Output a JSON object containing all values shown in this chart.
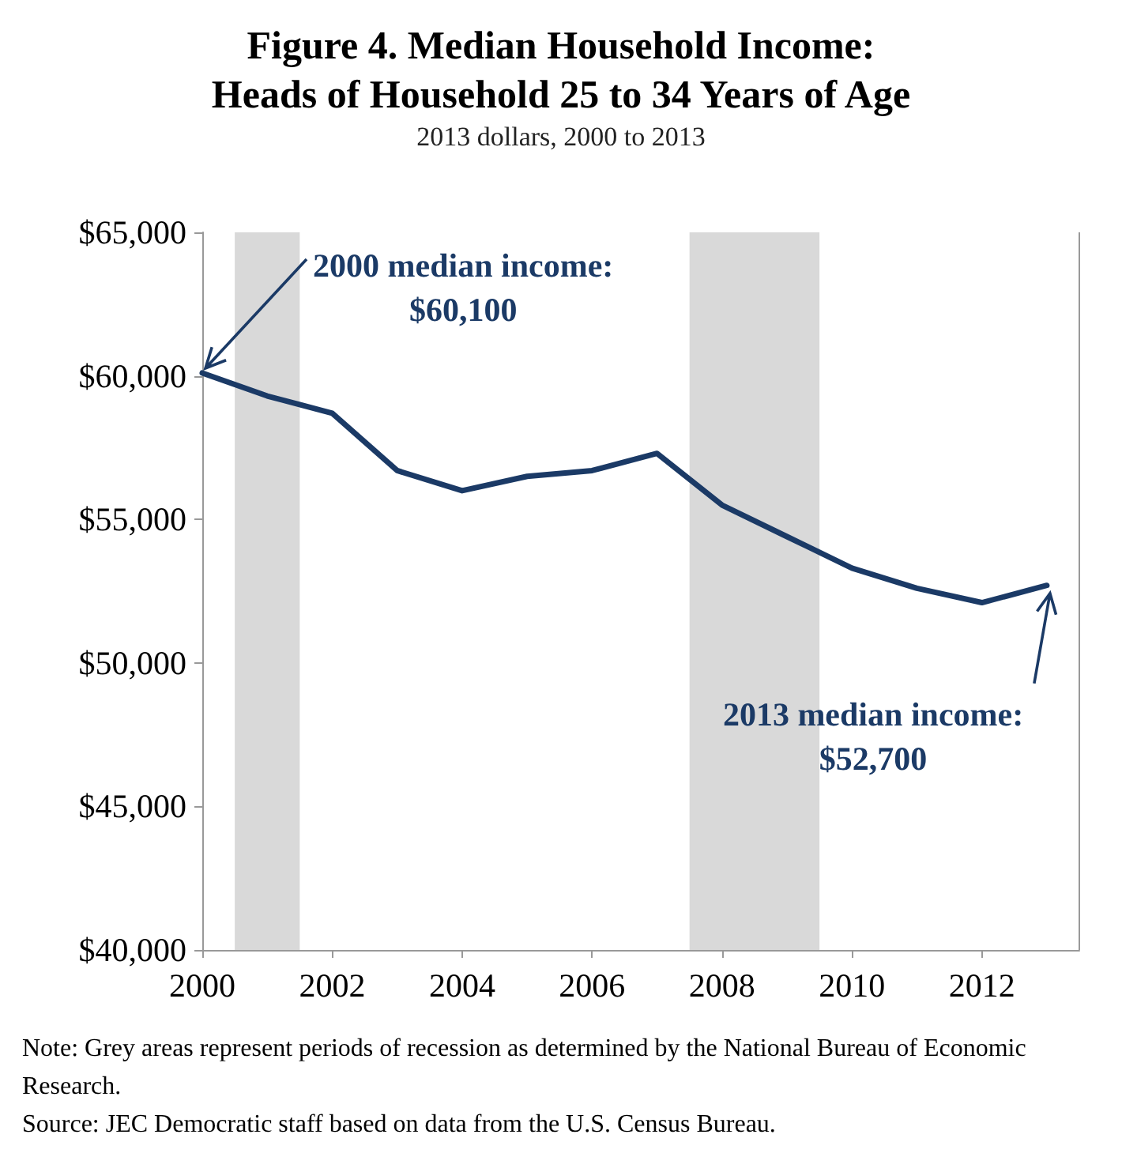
{
  "chart_data": {
    "type": "line",
    "title": "Figure 4. Median Household Income:\nHeads of Household 25 to 34 Years of Age",
    "subtitle": "2013 dollars, 2000 to 2013",
    "x": [
      2000,
      2001,
      2002,
      2003,
      2004,
      2005,
      2006,
      2007,
      2008,
      2009,
      2010,
      2011,
      2012,
      2013
    ],
    "series": [
      {
        "color": "#1b3a66",
        "values": [
          60100,
          59300,
          58700,
          56700,
          56000,
          56500,
          56700,
          57300,
          55500,
          54400,
          53300,
          52600,
          52100,
          52700
        ]
      }
    ],
    "xlim": [
      2000,
      2013.5
    ],
    "xticks": [
      2000,
      2002,
      2004,
      2006,
      2008,
      2010,
      2012
    ],
    "ylim": [
      40000,
      65000
    ],
    "yticks": [
      {
        "value": 40000,
        "label": "$40,000"
      },
      {
        "value": 45000,
        "label": "$45,000"
      },
      {
        "value": 50000,
        "label": "$50,000"
      },
      {
        "value": 55000,
        "label": "$55,000"
      },
      {
        "value": 60000,
        "label": "$60,000"
      },
      {
        "value": 65000,
        "label": "$65,000"
      }
    ],
    "bands": [
      {
        "axis": "x",
        "from": 2000.5,
        "to": 2001.5,
        "color": "#d9d9d9"
      },
      {
        "axis": "x",
        "from": 2007.5,
        "to": 2009.5,
        "color": "#d9d9d9"
      }
    ],
    "annotations": [
      {
        "text": "2000 median income:\n$60,100",
        "x": 2000,
        "y": 60100
      },
      {
        "text": "2013 median income:\n$52,700",
        "x": 2013,
        "y": 52700
      },
      "Note: Grey areas represent periods of recession as determined by the National Bureau of Economic Research.",
      "Source: JEC Democratic staff based on data from the U.S. Census Bureau."
    ],
    "grid": false,
    "marker": "none",
    "line_style": "solid"
  }
}
